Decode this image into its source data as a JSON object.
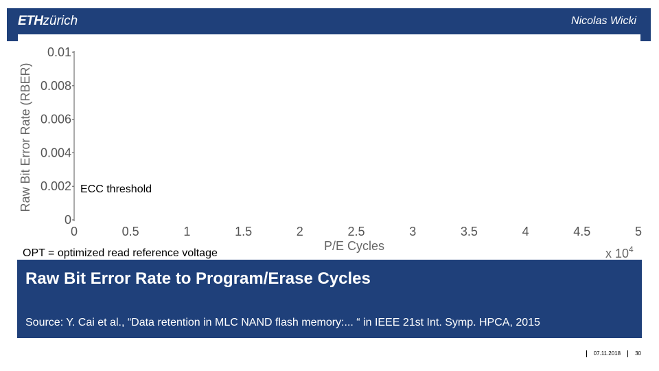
{
  "header": {
    "logo_primary": "ETH",
    "logo_secondary": "zürich",
    "presenter": "Nicolas Wicki"
  },
  "chart_data": {
    "type": "line",
    "title": "",
    "xlabel": "P/E Cycles",
    "ylabel": "Raw Bit Error Rate (RBER)",
    "x_multiplier_label": "x 10",
    "x_multiplier_exponent": "4",
    "xlim": [
      0,
      5
    ],
    "ylim": [
      0,
      0.01
    ],
    "x_ticks": [
      "0",
      "0.5",
      "1",
      "1.5",
      "2",
      "2.5",
      "3",
      "3.5",
      "4",
      "4.5",
      "5"
    ],
    "y_ticks": [
      "0",
      "0.002",
      "0.004",
      "0.006",
      "0.008",
      "0.01"
    ],
    "series": [],
    "annotations": [
      "ECC threshold",
      "OPT = optimized read reference voltage"
    ]
  },
  "slide": {
    "title": "Raw Bit Error Rate to Program/Erase Cycles",
    "source": "Source: Y. Cai et al., “Data retention in MLC NAND flash memory:... “ in IEEE 21st Int. Symp. HPCA, 2015"
  },
  "footer": {
    "date": "07.11.2018",
    "page": "30"
  },
  "colors": {
    "brand_blue": "#1f407a",
    "text_on_brand": "#ffffff"
  }
}
